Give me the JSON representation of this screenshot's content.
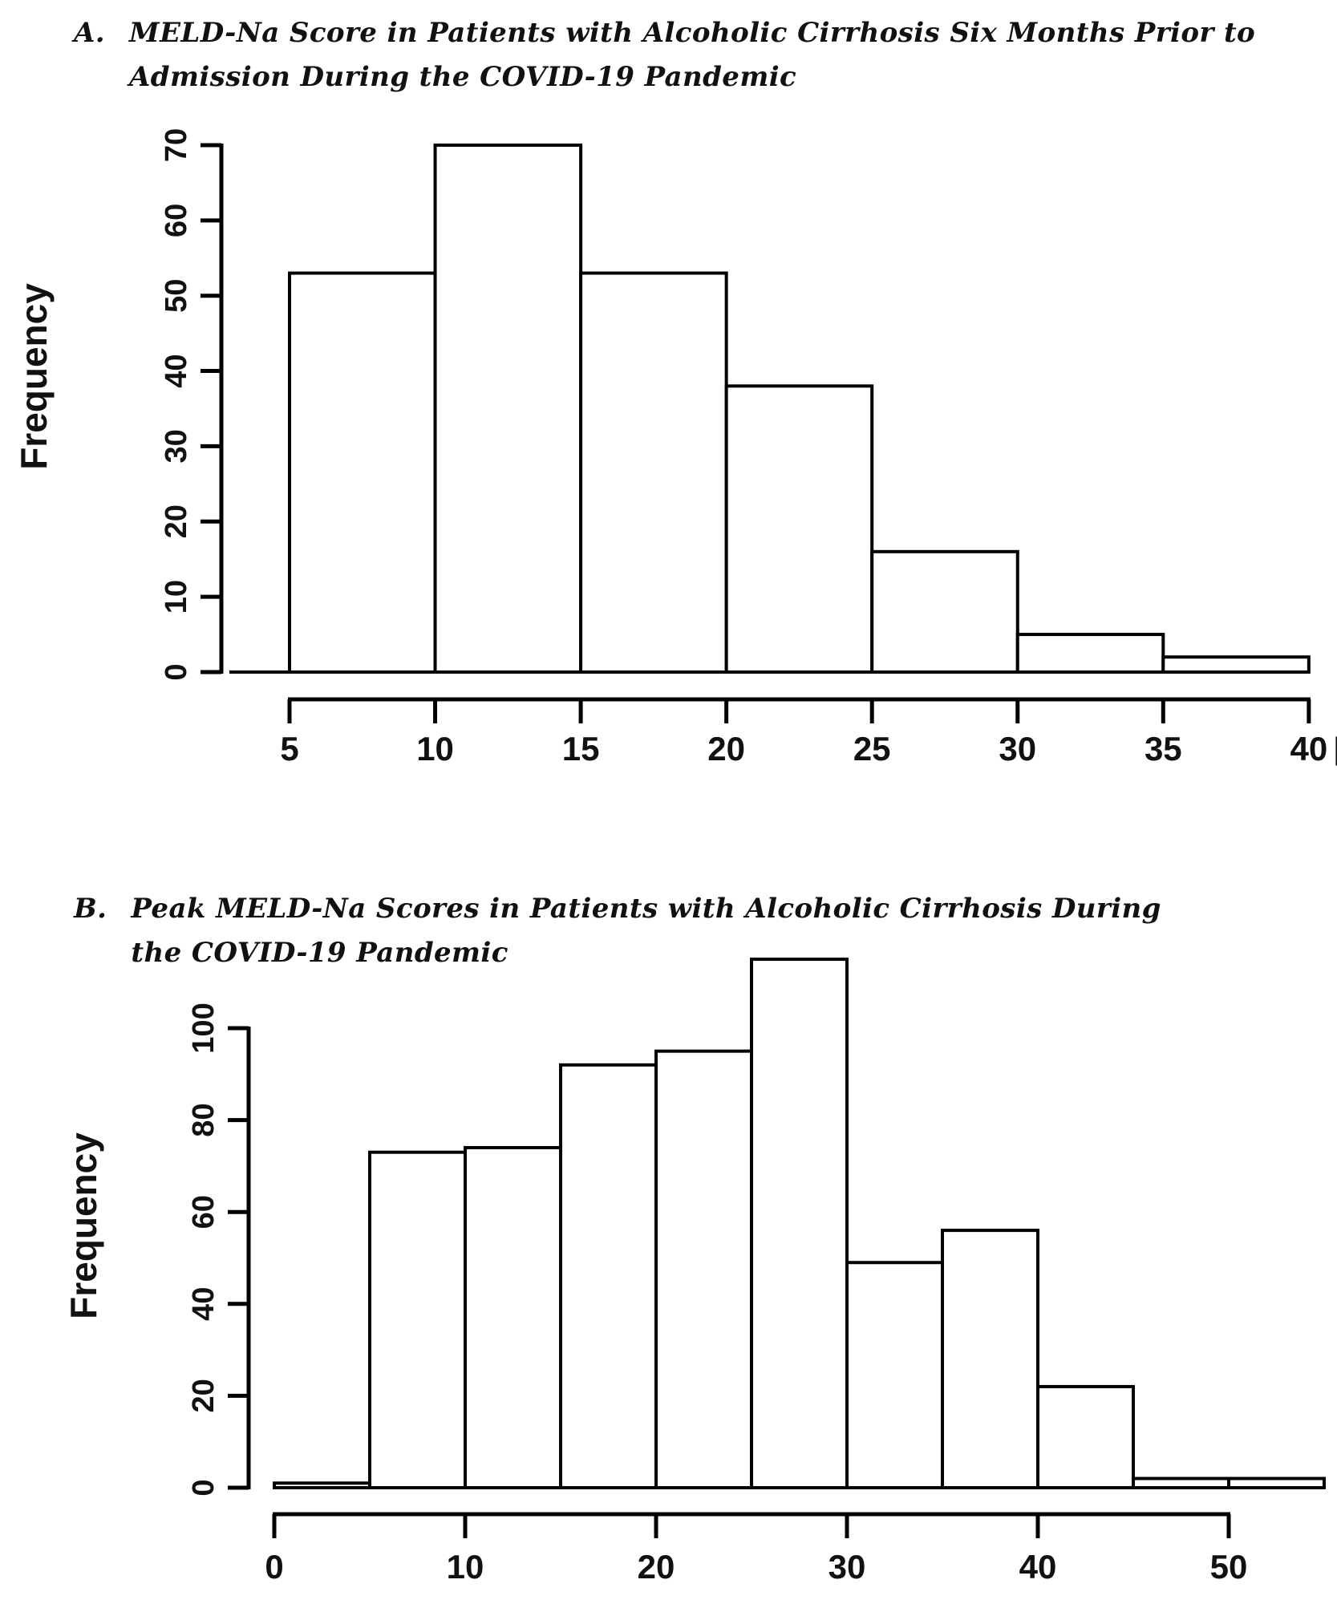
{
  "figure": {
    "panels": [
      {
        "letter": "A.",
        "title": "MELD-Na Score in Patients with Alcoholic Cirrhosis Six Months Prior to Admission During the COVID-19 Pandemic"
      },
      {
        "letter": "B.",
        "title": "Peak MELD-Na Scores in Patients with Alcoholic Cirrhosis During the COVID-19 Pandemic"
      }
    ]
  },
  "colors": {
    "background": "#ffffff",
    "ink": "#000000",
    "bar_fill": "#ffffff",
    "bar_stroke": "#000000"
  },
  "chart_data": [
    {
      "type": "bar",
      "subtype": "histogram",
      "panel": "A",
      "title": "MELD-Na Score in Patients with Alcoholic Cirrhosis Six Months Prior to Admission During the COVID-19 Pandemic",
      "xlabel": "",
      "ylabel": "Frequency",
      "bin_width": 5,
      "bin_edges": [
        5,
        10,
        15,
        20,
        25,
        30,
        35,
        40
      ],
      "counts": [
        53,
        70,
        53,
        38,
        16,
        5,
        2
      ],
      "x_ticks": [
        5,
        10,
        15,
        20,
        25,
        30,
        35,
        40
      ],
      "y_ticks": [
        0,
        10,
        20,
        30,
        40,
        50,
        60,
        70
      ],
      "xlim": [
        5,
        40
      ],
      "ylim": [
        0,
        70
      ],
      "grid": false,
      "legend": null,
      "axis_artifact": "|"
    },
    {
      "type": "bar",
      "subtype": "histogram",
      "panel": "B",
      "title": "Peak MELD-Na Scores in Patients with Alcoholic Cirrhosis During the COVID-19 Pandemic",
      "xlabel": "",
      "ylabel": "Frequency",
      "bin_width": 5,
      "bin_edges": [
        0,
        5,
        10,
        15,
        20,
        25,
        30,
        35,
        40,
        45,
        50,
        55
      ],
      "counts": [
        1,
        73,
        74,
        92,
        95,
        115,
        49,
        56,
        22,
        2,
        2
      ],
      "x_ticks": [
        0,
        10,
        20,
        30,
        40,
        50
      ],
      "y_ticks": [
        0,
        20,
        40,
        60,
        80,
        100
      ],
      "xlim": [
        0,
        55
      ],
      "ylim": [
        0,
        100
      ],
      "grid": false,
      "legend": null,
      "axis_artifact": ""
    }
  ]
}
